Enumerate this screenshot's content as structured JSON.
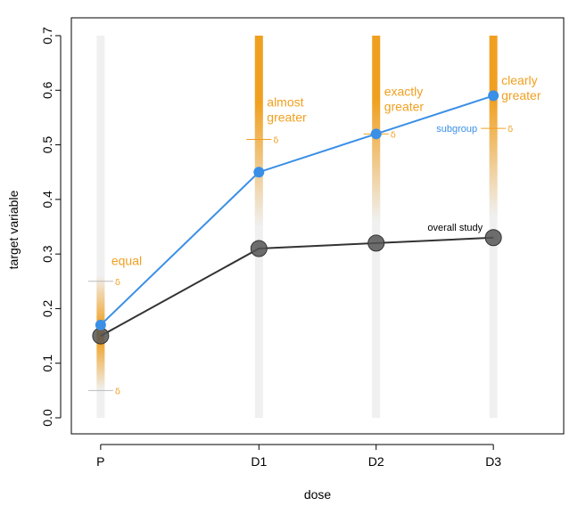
{
  "chart_data": {
    "type": "line",
    "xlabel": "dose",
    "ylabel": "target variable",
    "categories": [
      "P",
      "D1",
      "D2",
      "D3"
    ],
    "x_positions": [
      0,
      1.35,
      2.35,
      3.35
    ],
    "xlim": [
      -0.25,
      3.95
    ],
    "ylim": [
      0,
      0.7
    ],
    "y_ticks": [
      0.0,
      0.1,
      0.2,
      0.3,
      0.4,
      0.5,
      0.6,
      0.7
    ],
    "y_tick_labels": [
      "0.0",
      "0.1",
      "0.2",
      "0.3",
      "0.4",
      "0.5",
      "0.6",
      "0.7"
    ],
    "colors": {
      "subgroup": "#3a8fe6",
      "overall": "#333333",
      "annotation": "#f0a020",
      "band": "#f0f0f0",
      "delta_line": "#bbbbbb"
    },
    "series": [
      {
        "name": "subgroup",
        "values": [
          0.17,
          0.45,
          0.52,
          0.59
        ]
      },
      {
        "name": "overall study",
        "values": [
          0.15,
          0.31,
          0.32,
          0.33
        ]
      }
    ],
    "delta_marks": [
      {
        "category": "P",
        "value": 0.25,
        "label": "δ"
      },
      {
        "category": "P",
        "value": 0.05,
        "label": "δ"
      },
      {
        "category": "D1",
        "value": 0.51,
        "label": "δ"
      },
      {
        "category": "D2",
        "value": 0.52,
        "label": "δ"
      },
      {
        "category": "D3",
        "value": 0.53,
        "label": "δ"
      }
    ],
    "annotations": [
      {
        "text": [
          "equal"
        ],
        "category": "P",
        "value": 0.28
      },
      {
        "text": [
          "almost",
          "greater"
        ],
        "category": "D1",
        "value": 0.57
      },
      {
        "text": [
          "exactly",
          "greater"
        ],
        "category": "D2",
        "value": 0.59
      },
      {
        "text": [
          "clearly",
          "greater"
        ],
        "category": "D3",
        "value": 0.61
      }
    ],
    "series_labels": [
      {
        "text": "subgroup",
        "series": 0
      },
      {
        "text": "overall study",
        "series": 1
      }
    ]
  }
}
